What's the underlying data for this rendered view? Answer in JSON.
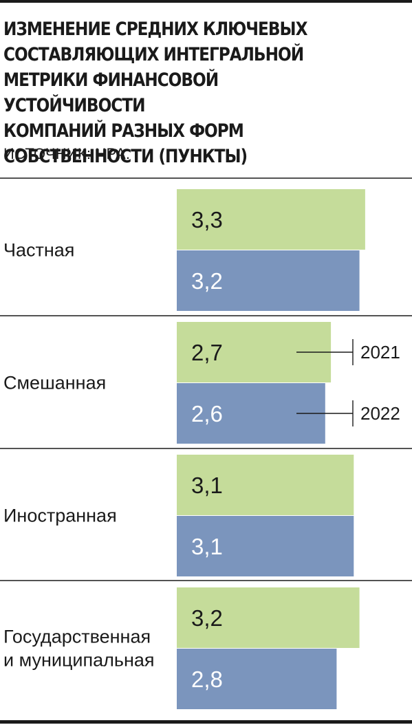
{
  "title": "ИЗМЕНЕНИЕ СРЕДНИХ КЛЮЧЕВЫХ\nСОСТАВЛЯЮЩИХ ИНТЕГРАЛЬНОЙ\nМЕТРИКИ ФИНАНСОВОЙ УСТОЙЧИВОСТИ\nКОМПАНИЙ РАЗНЫХ ФОРМ\nСОБСТВЕННОСТИ (ПУНКТЫ)",
  "source": "ИСТОЧНИК: НРА.",
  "colors": {
    "series_2021": "#c5dc9a",
    "series_2022": "#7b95bd",
    "label_on_2021": "#1a1a1a",
    "label_on_2022": "#ffffff",
    "rule": "#1a1a1a"
  },
  "chart_data": {
    "type": "bar",
    "orientation": "horizontal",
    "categories": [
      [
        "Частная"
      ],
      [
        "Смешанная"
      ],
      [
        "Иностранная"
      ],
      [
        "Государственная",
        "и муниципальная"
      ]
    ],
    "series": [
      {
        "name": "2021",
        "values": [
          3.3,
          2.7,
          3.1,
          3.2
        ],
        "labels": [
          "3,3",
          "2,7",
          "3,1",
          "3,2"
        ]
      },
      {
        "name": "2022",
        "values": [
          3.2,
          2.6,
          3.1,
          2.8
        ],
        "labels": [
          "3,2",
          "2,6",
          "3,1",
          "2,8"
        ]
      }
    ],
    "legend_placement": "inline, beside the second group",
    "grid": false
  }
}
